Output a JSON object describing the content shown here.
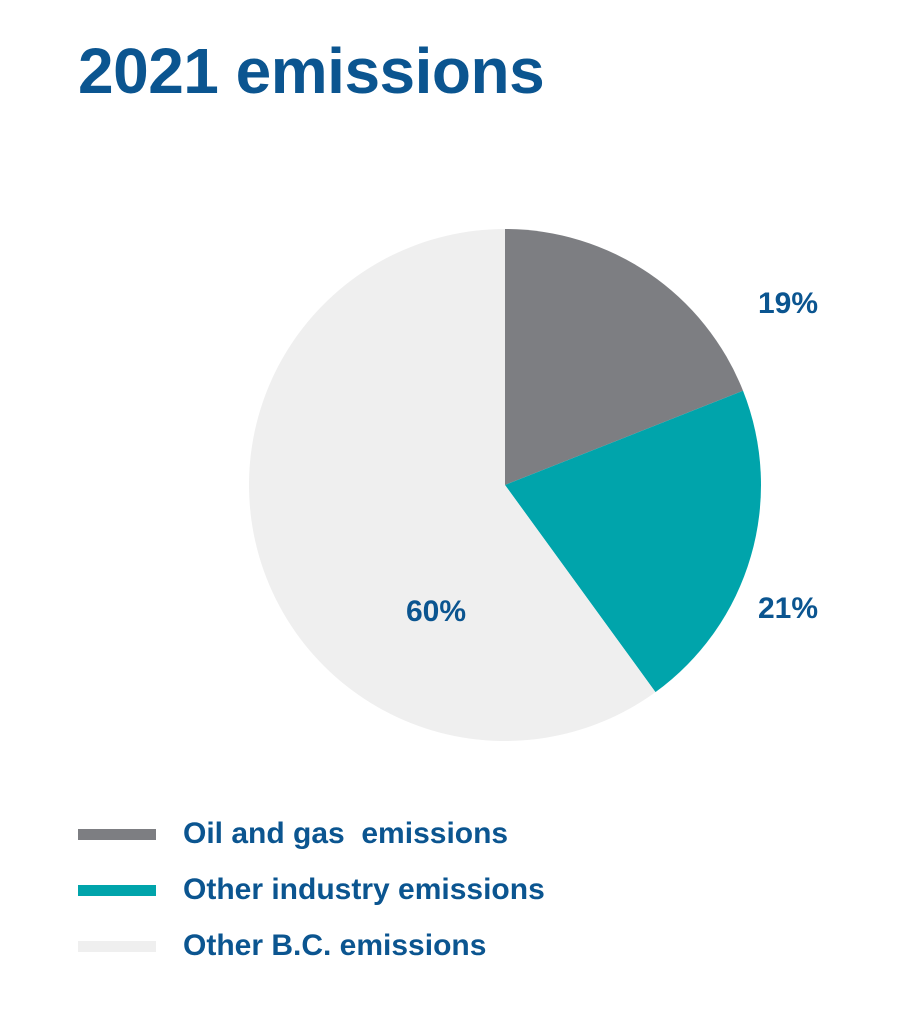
{
  "chart_data": {
    "type": "pie",
    "title": "2021 emissions",
    "start_angle_deg": 0,
    "direction": "clockwise",
    "slices": [
      {
        "name": "Oil and gas  emissions",
        "value": 19,
        "label": "19%",
        "color": "#7d7e82"
      },
      {
        "name": "Other industry emissions",
        "value": 21,
        "label": "21%",
        "color": "#00a4ab"
      },
      {
        "name": "Other B.C. emissions",
        "value": 60,
        "label": "60%",
        "color": "#efefef"
      }
    ],
    "legend_position": "bottom-left"
  }
}
